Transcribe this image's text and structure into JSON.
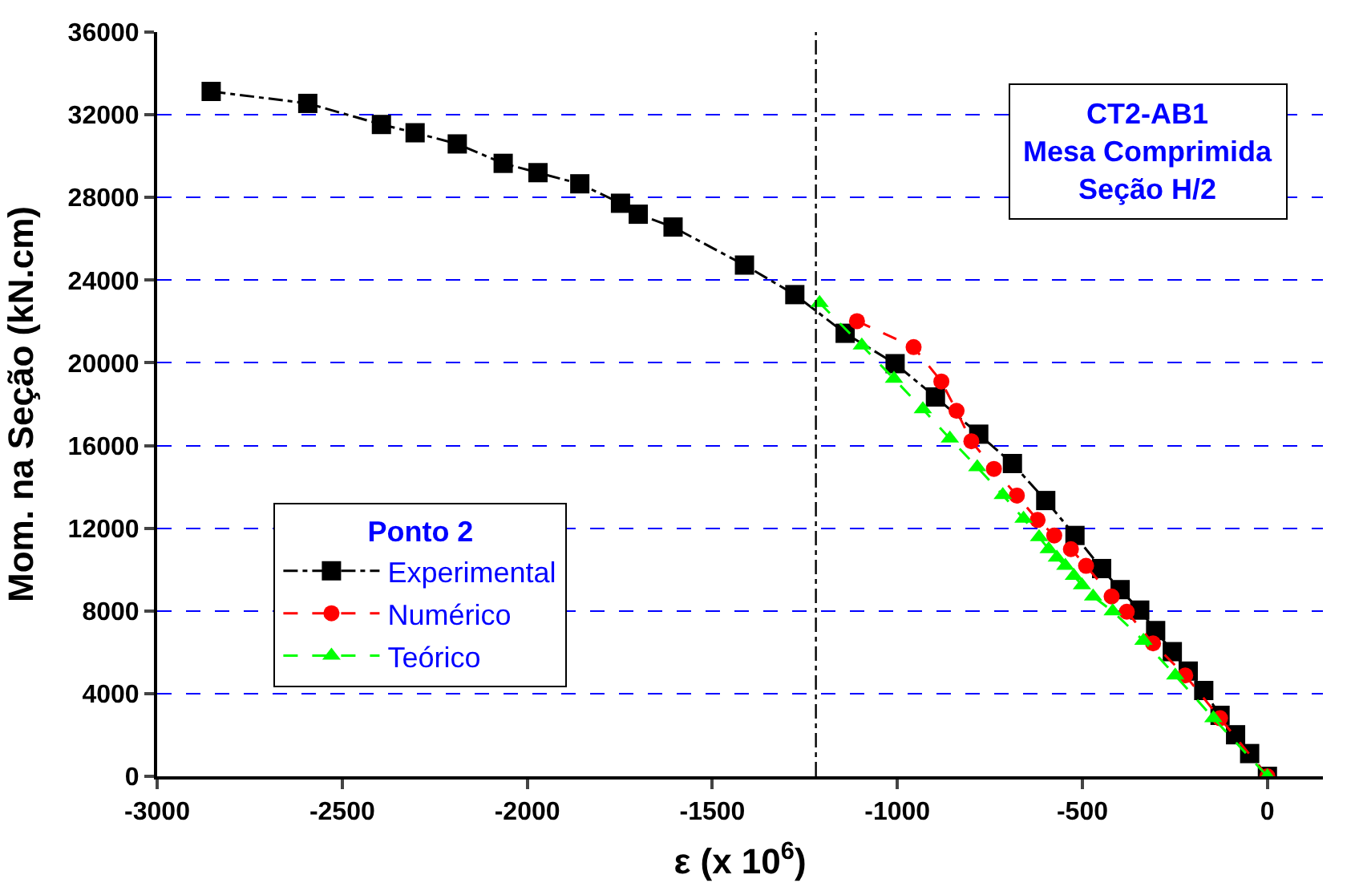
{
  "chart_data": {
    "type": "line",
    "xlabel": "ε (x 10$^{6}$)",
    "ylabel": "Mom. na Seção (kN.cm)",
    "legend_title": "Ponto 2",
    "legend": "bottom left",
    "grid": "y",
    "xlim": [
      -3000,
      150
    ],
    "ylim": [
      0,
      36000
    ],
    "xticks": [
      -3000,
      -2500,
      -2000,
      -1500,
      -1000,
      -500,
      0
    ],
    "yticks": [
      0,
      4000,
      8000,
      12000,
      16000,
      20000,
      24000,
      28000,
      32000,
      36000
    ],
    "annotations": [
      "CT2-AB1\nMesa Comprimida\nSeção H/2"
    ],
    "ref_lines": [
      {
        "axis": "x",
        "value": -1220,
        "color": "#000000",
        "line_style": "dashdot"
      }
    ],
    "series": [
      {
        "name": "Experimental",
        "color": "#000000",
        "marker": "square",
        "line_style": "dashdot",
        "x": [
          -2854,
          -2593,
          -2394,
          -2303,
          -2189,
          -2065,
          -1971,
          -1858,
          -1748,
          -1700,
          -1606,
          -1413,
          -1277,
          -1141,
          -1006,
          -897,
          -780,
          -689,
          -599,
          -520,
          -448,
          -398,
          -345,
          -302,
          -257,
          -214,
          -172,
          -128,
          -86,
          -48,
          0
        ],
        "values": [
          33130,
          32550,
          31530,
          31130,
          30590,
          29650,
          29200,
          28660,
          27720,
          27190,
          26570,
          24730,
          23300,
          21430,
          19960,
          18350,
          16550,
          15130,
          13340,
          11650,
          10050,
          9030,
          8040,
          7050,
          6030,
          5090,
          4150,
          2950,
          2010,
          1100,
          0
        ]
      },
      {
        "name": "Numérico",
        "color": "#ff0000",
        "marker": "circle",
        "line_style": "dashed",
        "x": [
          -1109,
          -956,
          -881,
          -840,
          -800,
          -739,
          -677,
          -621,
          -576,
          -531,
          -490,
          -421,
          -380,
          -309,
          -222,
          -128,
          0
        ],
        "values": [
          22020,
          20760,
          19100,
          17680,
          16210,
          14870,
          13580,
          12400,
          11650,
          10990,
          10180,
          8700,
          7960,
          6430,
          4880,
          2810,
          0
        ]
      },
      {
        "name": "Teórico",
        "color": "#00ff00",
        "marker": "triangle",
        "line_style": "dashed",
        "x": [
          -1210,
          -1096,
          -1009,
          -931,
          -858,
          -784,
          -715,
          -659,
          -617,
          -591,
          -569,
          -546,
          -523,
          -501,
          -471,
          -418,
          -335,
          -249,
          -146,
          0
        ],
        "values": [
          22900,
          20840,
          19230,
          17760,
          16340,
          14950,
          13610,
          12460,
          11570,
          10990,
          10580,
          10180,
          9700,
          9240,
          8700,
          7980,
          6560,
          4880,
          2810,
          0
        ]
      }
    ]
  }
}
